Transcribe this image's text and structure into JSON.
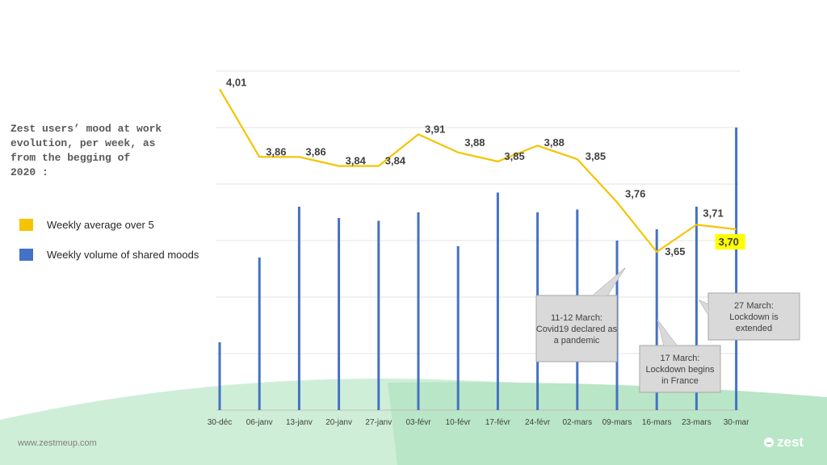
{
  "title": "Zest users’ mood at work\nevolution, per week, as\nfrom the begging of\n2020 :",
  "legend": {
    "average_label": "Weekly average over 5",
    "volume_label": "Weekly volume of shared moods"
  },
  "footer": {
    "url": "www.zestmeup.com",
    "logo_text": "zest"
  },
  "colors": {
    "line": "#f5c400",
    "bars": "#4472c4",
    "highlight": "#ffff00",
    "callout": "#d9d9d9"
  },
  "chart_data": {
    "type": "bar+line",
    "categories": [
      "30-déc",
      "06-janv",
      "13-janv",
      "20-janv",
      "27-janv",
      "03-févr",
      "10-févr",
      "17-févr",
      "24-févr",
      "02-mars",
      "09-mars",
      "16-mars",
      "23-mars",
      "30-mar"
    ],
    "series": [
      {
        "name": "Weekly volume of shared moods",
        "kind": "bar",
        "values": [
          12,
          27,
          36,
          34,
          33.5,
          35,
          29,
          38.5,
          35,
          35.5,
          30,
          32,
          36,
          50
        ],
        "ylim": [
          0,
          60
        ]
      },
      {
        "name": "Weekly average over 5",
        "kind": "line",
        "values": [
          4.01,
          3.86,
          3.86,
          3.84,
          3.84,
          3.91,
          3.88,
          3.85,
          3.88,
          3.85,
          3.76,
          3.65,
          3.71,
          3.7
        ],
        "labels": [
          "4,01",
          "3,86",
          "3,86",
          "3,84",
          "3,84",
          "3,91",
          "3,88",
          "3,85",
          "3,88",
          "3,85",
          "3,76",
          "3,65",
          "3,71",
          "3,70"
        ],
        "line_points": [
          4.01,
          3.86,
          3.86,
          3.84,
          3.84,
          3.91,
          3.87,
          3.85,
          3.885,
          3.855,
          3.76,
          3.65,
          3.71,
          3.7
        ],
        "highlight_index": 13,
        "ylim": [
          3.3,
          4.05
        ]
      }
    ],
    "gridlines": true,
    "annotations": [
      {
        "text": "11-12 March:\nCovid19 declared as\na pandemic",
        "index": 9.5
      },
      {
        "text": "17 March:\nLockdown begins\nin France",
        "index": 11.3
      },
      {
        "text": "27 March:\nLockdown is\nextended",
        "index": 13
      }
    ]
  }
}
